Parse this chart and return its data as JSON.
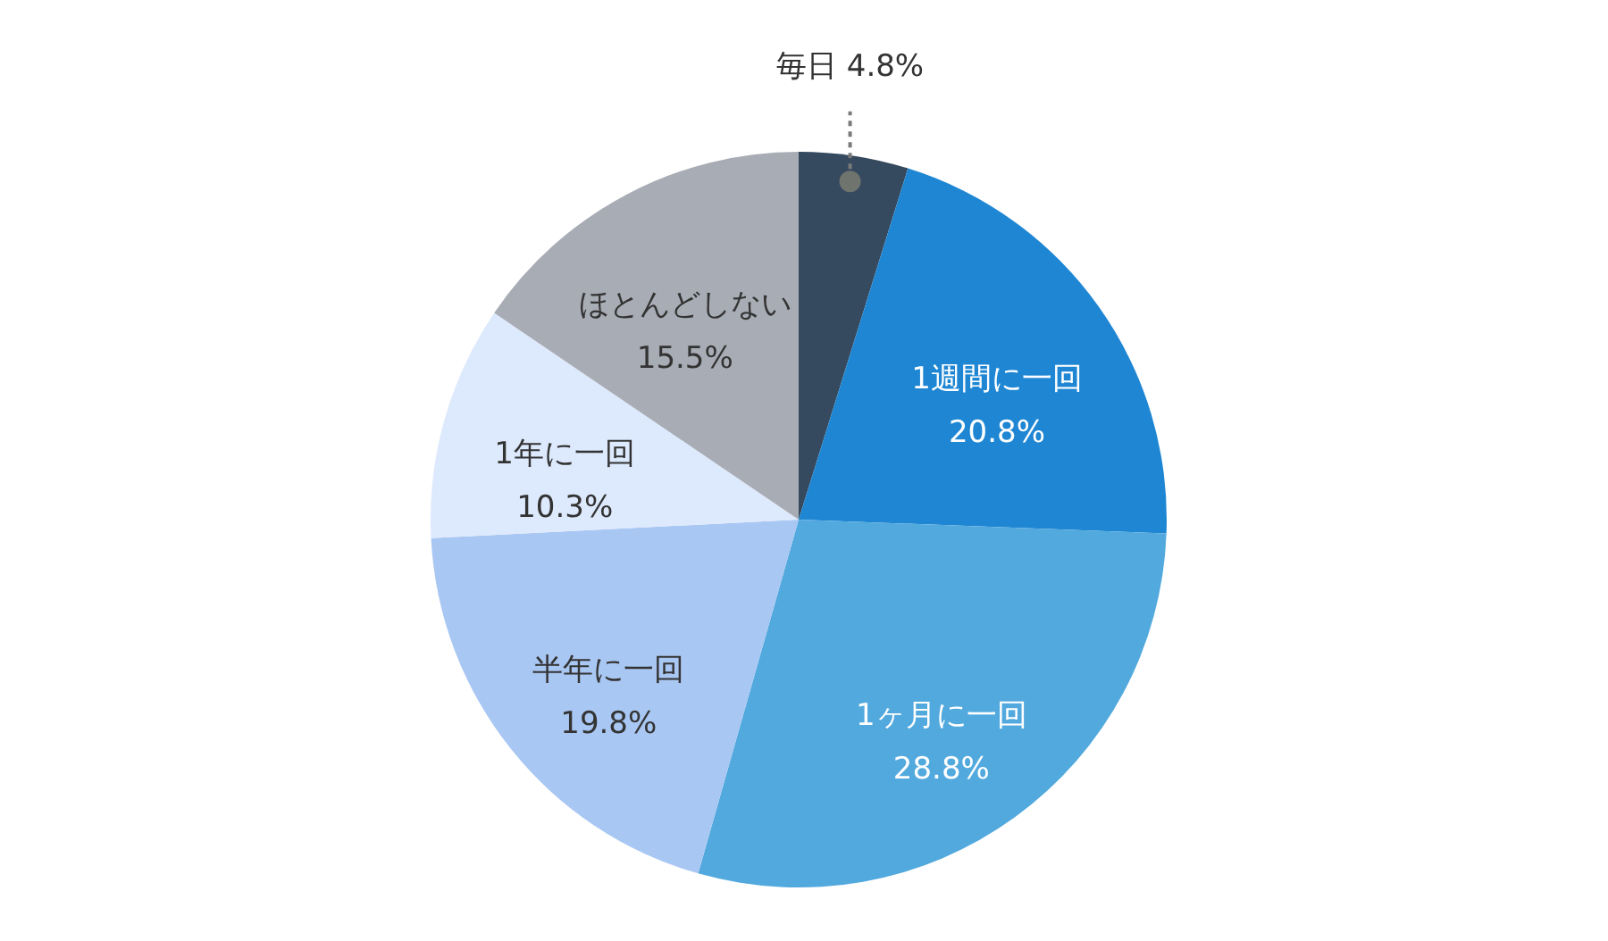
{
  "chart_data": {
    "type": "pie",
    "categories": [
      "毎日",
      "1週間に一回",
      "1ヶ月に一回",
      "半年に一回",
      "1年に一回",
      "ほとんどしない"
    ],
    "values": [
      4.8,
      20.8,
      28.8,
      19.8,
      10.3,
      15.5
    ],
    "colors": [
      "#35495f",
      "#1e86d3",
      "#52a9de",
      "#a9c7f3",
      "#dde9fc",
      "#a8acb5"
    ],
    "value_labels": [
      "4.8%",
      "20.8%",
      "28.8%",
      "19.8%",
      "10.3%",
      "15.5%"
    ]
  }
}
